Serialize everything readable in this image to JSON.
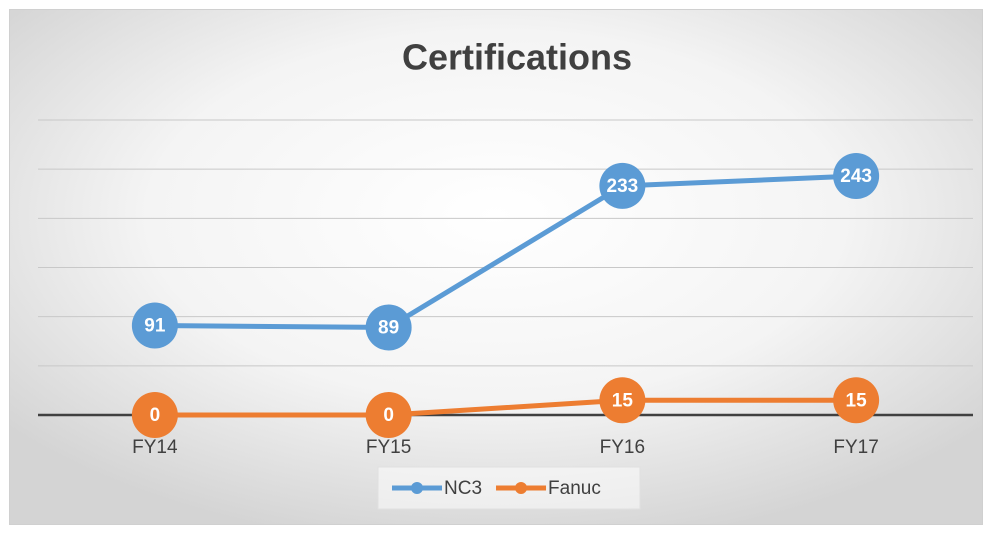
{
  "chart_data": {
    "type": "line",
    "title": "Certifications",
    "categories": [
      "FY14",
      "FY15",
      "FY16",
      "FY17"
    ],
    "series": [
      {
        "name": "NC3",
        "color": "#5b9bd5",
        "values": [
          91,
          89,
          233,
          243
        ]
      },
      {
        "name": "Fanuc",
        "color": "#ed7d31",
        "values": [
          0,
          0,
          15,
          15
        ]
      }
    ],
    "ylim": [
      0,
      300
    ],
    "yticks": [
      0,
      50,
      100,
      150,
      200,
      250,
      300
    ],
    "grid": true,
    "legend": "bottom"
  }
}
